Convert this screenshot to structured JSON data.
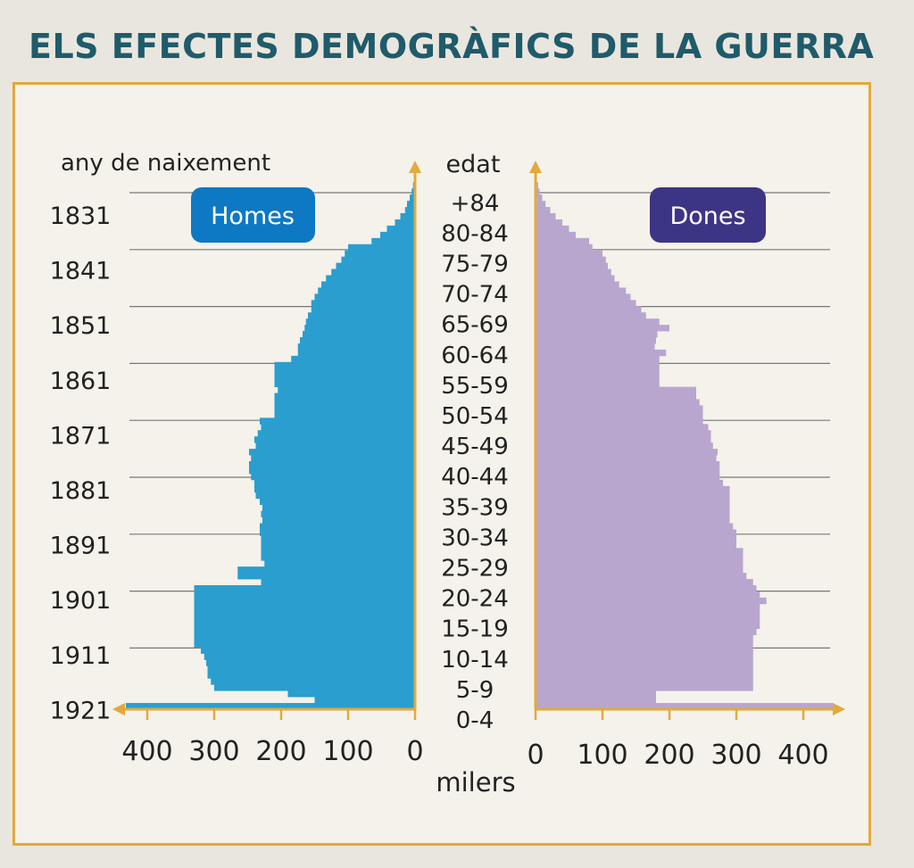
{
  "title": "ELS EFECTES DEMOGRÀFICS DE LA GUERRA",
  "chart_data": {
    "type": "bar",
    "subtype": "population-pyramid",
    "title": "ELS EFECTES DEMOGRÀFICS DE LA GUERRA",
    "left_axis_title": "any de naixement",
    "center_axis_title": "edat",
    "x_unit_label": "milers",
    "xlim": [
      0,
      450
    ],
    "x_ticks": [
      400,
      300,
      200,
      100,
      0
    ],
    "x_ticks_right": [
      0,
      100,
      200,
      300,
      400
    ],
    "birth_year_labels": [
      "1831",
      "1841",
      "1851",
      "1861",
      "1871",
      "1881",
      "1891",
      "1901",
      "1911",
      "1921"
    ],
    "age_groups": [
      "0-4",
      "5-9",
      "10-14",
      "15-19",
      "20-24",
      "25-29",
      "30-34",
      "35-39",
      "40-44",
      "45-49",
      "50-54",
      "55-59",
      "60-64",
      "65-69",
      "70-74",
      "75-79",
      "80-84",
      "+84"
    ],
    "series": [
      {
        "name": "Homes",
        "color": "#2a9ecf",
        "label_color": "#0d78c4",
        "values_single_year_from_age_0": [
          432,
          150,
          190,
          300,
          305,
          310,
          310,
          312,
          315,
          320,
          330,
          330,
          330,
          330,
          330,
          330,
          330,
          330,
          330,
          330,
          230,
          265,
          265,
          225,
          230,
          230,
          230,
          230,
          232,
          232,
          228,
          230,
          228,
          232,
          238,
          240,
          240,
          245,
          248,
          248,
          245,
          248,
          238,
          240,
          235,
          230,
          232,
          210,
          210,
          210,
          210,
          205,
          210,
          210,
          210,
          210,
          185,
          175,
          175,
          172,
          168,
          165,
          163,
          160,
          155,
          155,
          150,
          145,
          140,
          133,
          125,
          118,
          110,
          105,
          100,
          65,
          52,
          42,
          30,
          22,
          15,
          12,
          8,
          5,
          3,
          2
        ]
      },
      {
        "name": "Dones",
        "color": "#b9a6cf",
        "label_color": "#3c3585",
        "values_single_year_from_age_0": [
          445,
          180,
          180,
          325,
          325,
          325,
          325,
          325,
          325,
          325,
          325,
          325,
          330,
          335,
          335,
          335,
          335,
          345,
          335,
          330,
          325,
          315,
          310,
          310,
          310,
          310,
          300,
          300,
          300,
          295,
          290,
          290,
          290,
          290,
          290,
          290,
          280,
          275,
          275,
          275,
          270,
          272,
          265,
          262,
          262,
          258,
          250,
          250,
          250,
          245,
          240,
          240,
          185,
          185,
          185,
          185,
          185,
          195,
          178,
          180,
          182,
          200,
          185,
          165,
          158,
          150,
          142,
          135,
          125,
          118,
          113,
          108,
          105,
          100,
          85,
          80,
          60,
          50,
          40,
          30,
          22,
          15,
          10,
          6,
          4,
          2
        ]
      }
    ],
    "legend": [
      "Homes",
      "Dones"
    ]
  }
}
